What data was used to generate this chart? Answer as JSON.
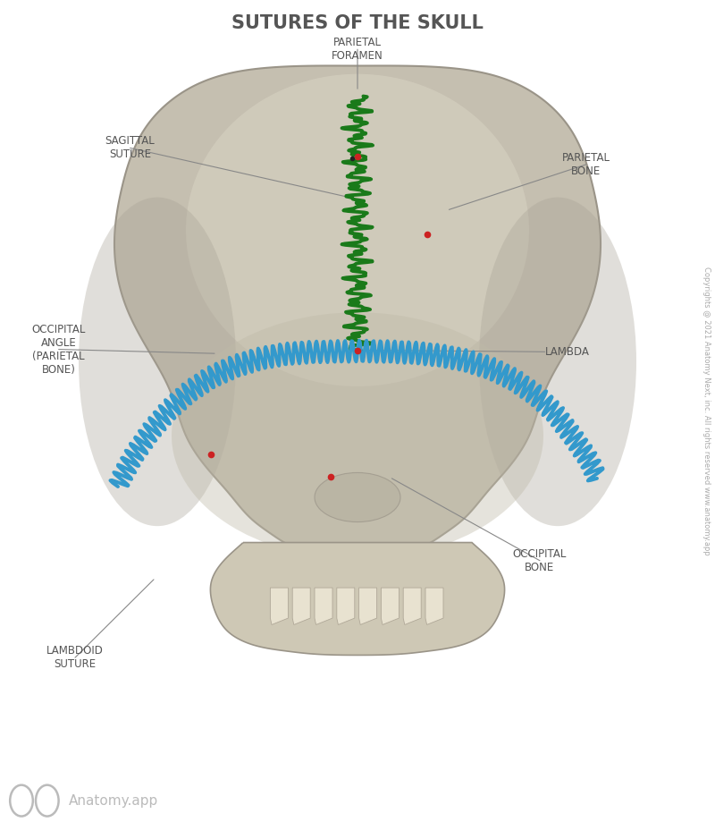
{
  "title": "SUTURES OF THE SKULL",
  "title_color": "#555555",
  "title_fontsize": 15,
  "background_color": "#ffffff",
  "label_color": "#555555",
  "label_fontsize": 8.5,
  "line_color": "#888888",
  "skull_light": "#d4cfc0",
  "skull_mid": "#c5bfb0",
  "skull_dark": "#b0aa9a",
  "skull_edge": "#9a9488",
  "occipital_color": "#bcb6a6",
  "jaw_color": "#ccc5b0",
  "green_suture_color": "#1a7a1a",
  "blue_suture_color": "#3399cc",
  "red_dot_color": "#cc2222",
  "dark_dot_color": "#222222",
  "copyright_text": "Copyrights @ 2021 Anatomy Next, inc. All rights reserved www.anatomy.app",
  "watermark_text": "Anatomy.app"
}
